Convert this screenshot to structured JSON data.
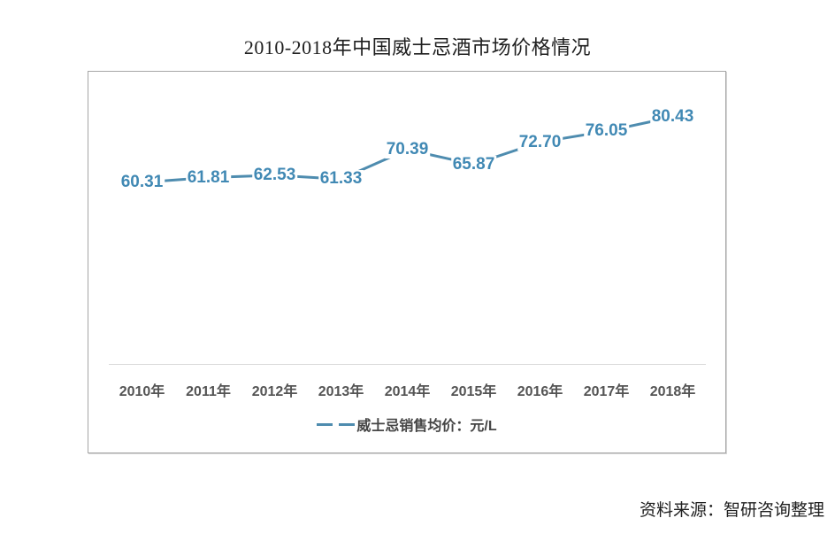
{
  "page": {
    "title": "2010-2018年中国威士忌酒市场价格情况",
    "source": "资料来源：智研咨询整理"
  },
  "chart_data": {
    "type": "line",
    "title": "2010-2018年中国威士忌酒市场价格情况",
    "categories": [
      "2010年",
      "2011年",
      "2012年",
      "2013年",
      "2014年",
      "2015年",
      "2016年",
      "2017年",
      "2018年"
    ],
    "series": [
      {
        "name": "威士忌销售均价：元/L",
        "values": [
          60.31,
          61.81,
          62.53,
          61.33,
          70.39,
          65.87,
          72.7,
          76.05,
          80.43
        ]
      }
    ],
    "data_labels": [
      "60.31",
      "61.81",
      "62.53",
      "61.33",
      "70.39",
      "65.87",
      "72.70",
      "76.05",
      "80.43"
    ],
    "xlabel": "",
    "ylabel": "",
    "ylim": [
      58,
      84
    ],
    "grid": false,
    "legend": {
      "position": "bottom",
      "label": "威士忌销售均价：元/L"
    },
    "colors": {
      "line": "#4e8caf",
      "data_label": "#4189b4",
      "axis_label": "#545454",
      "legend_text": "#454545",
      "axis_line": "#d9d9d9"
    }
  }
}
